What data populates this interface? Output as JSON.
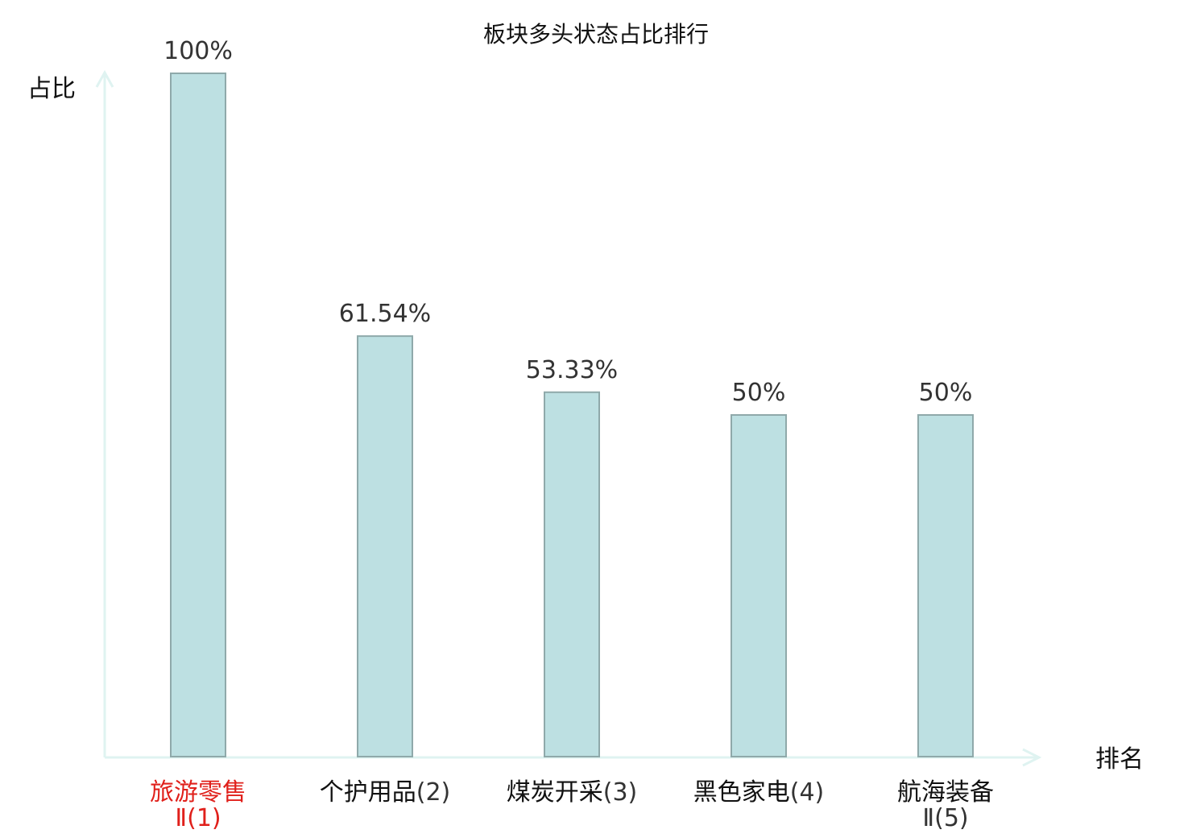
{
  "chart_data": {
    "type": "bar",
    "title": "板块多头状态占比排行",
    "ylabel": "占比",
    "xlabel": "排名",
    "ylim": [
      0,
      100
    ],
    "grid": false,
    "categories": [
      {
        "name": "旅游零售",
        "rank": "Ⅱ(1)",
        "highlight": true
      },
      {
        "name": "个护用品",
        "rank": "(2)",
        "highlight": false
      },
      {
        "name": "煤炭开采",
        "rank": "(3)",
        "highlight": false
      },
      {
        "name": "黑色家电",
        "rank": "(4)",
        "highlight": false
      },
      {
        "name": "航海装备",
        "rank": "Ⅱ(5)",
        "highlight": false
      }
    ],
    "values": [
      100,
      61.54,
      53.33,
      50,
      50
    ],
    "value_labels": [
      "100%",
      "61.54%",
      "53.33%",
      "50%",
      "50%"
    ]
  },
  "colors": {
    "bar_fill": "#bde0e2",
    "bar_stroke": "#8fa9aa",
    "axis": "#dff3f1",
    "text": "#333333",
    "label_text": "#111111",
    "highlight": "#e0201b"
  }
}
